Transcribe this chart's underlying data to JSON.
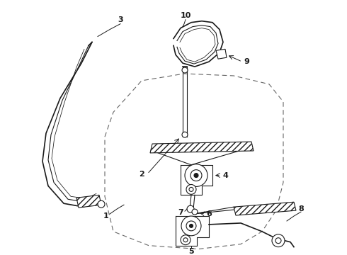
{
  "background": "#ffffff",
  "line_color": "#1a1a1a",
  "dash_color": "#666666",
  "lw_main": 1.2,
  "lw_thin": 0.8,
  "label_fs": 8
}
